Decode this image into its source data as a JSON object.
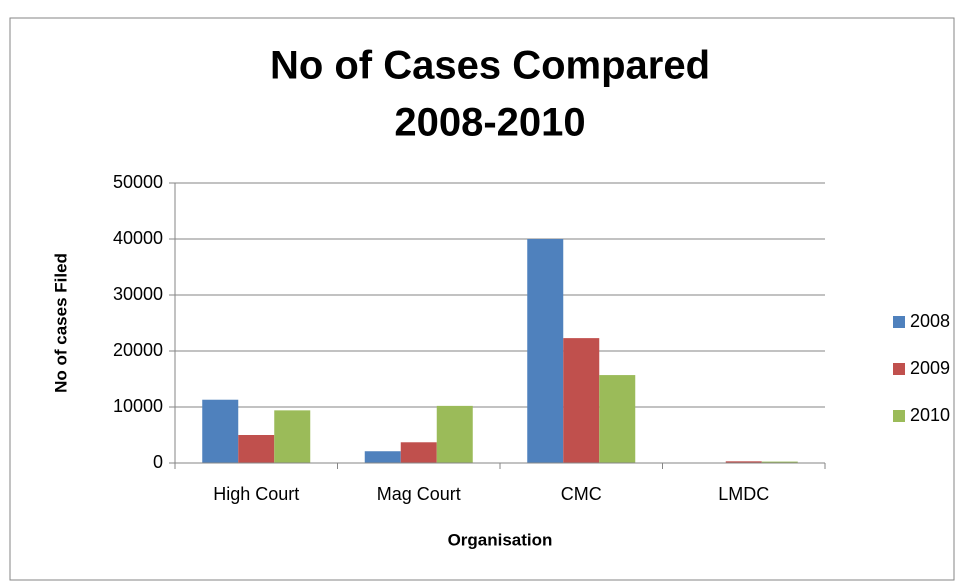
{
  "chart_data": {
    "type": "bar",
    "title": [
      "No of Cases Compared",
      "2008-2010"
    ],
    "xlabel": "Organisation",
    "ylabel": "No of cases Filed",
    "categories": [
      "High Court",
      "Mag Court",
      "CMC",
      "LMDC"
    ],
    "series": [
      {
        "name": "2008",
        "color": "#4f81bd",
        "values": [
          11300,
          2100,
          40000,
          50
        ]
      },
      {
        "name": "2009",
        "color": "#c0504d",
        "values": [
          5000,
          3700,
          22300,
          300
        ]
      },
      {
        "name": "2010",
        "color": "#9bbb59",
        "values": [
          9400,
          10200,
          15700,
          250
        ]
      }
    ],
    "ylim": [
      0,
      50000
    ],
    "yticks": [
      0,
      10000,
      20000,
      30000,
      40000,
      50000
    ],
    "grid": true,
    "legend": "right"
  }
}
